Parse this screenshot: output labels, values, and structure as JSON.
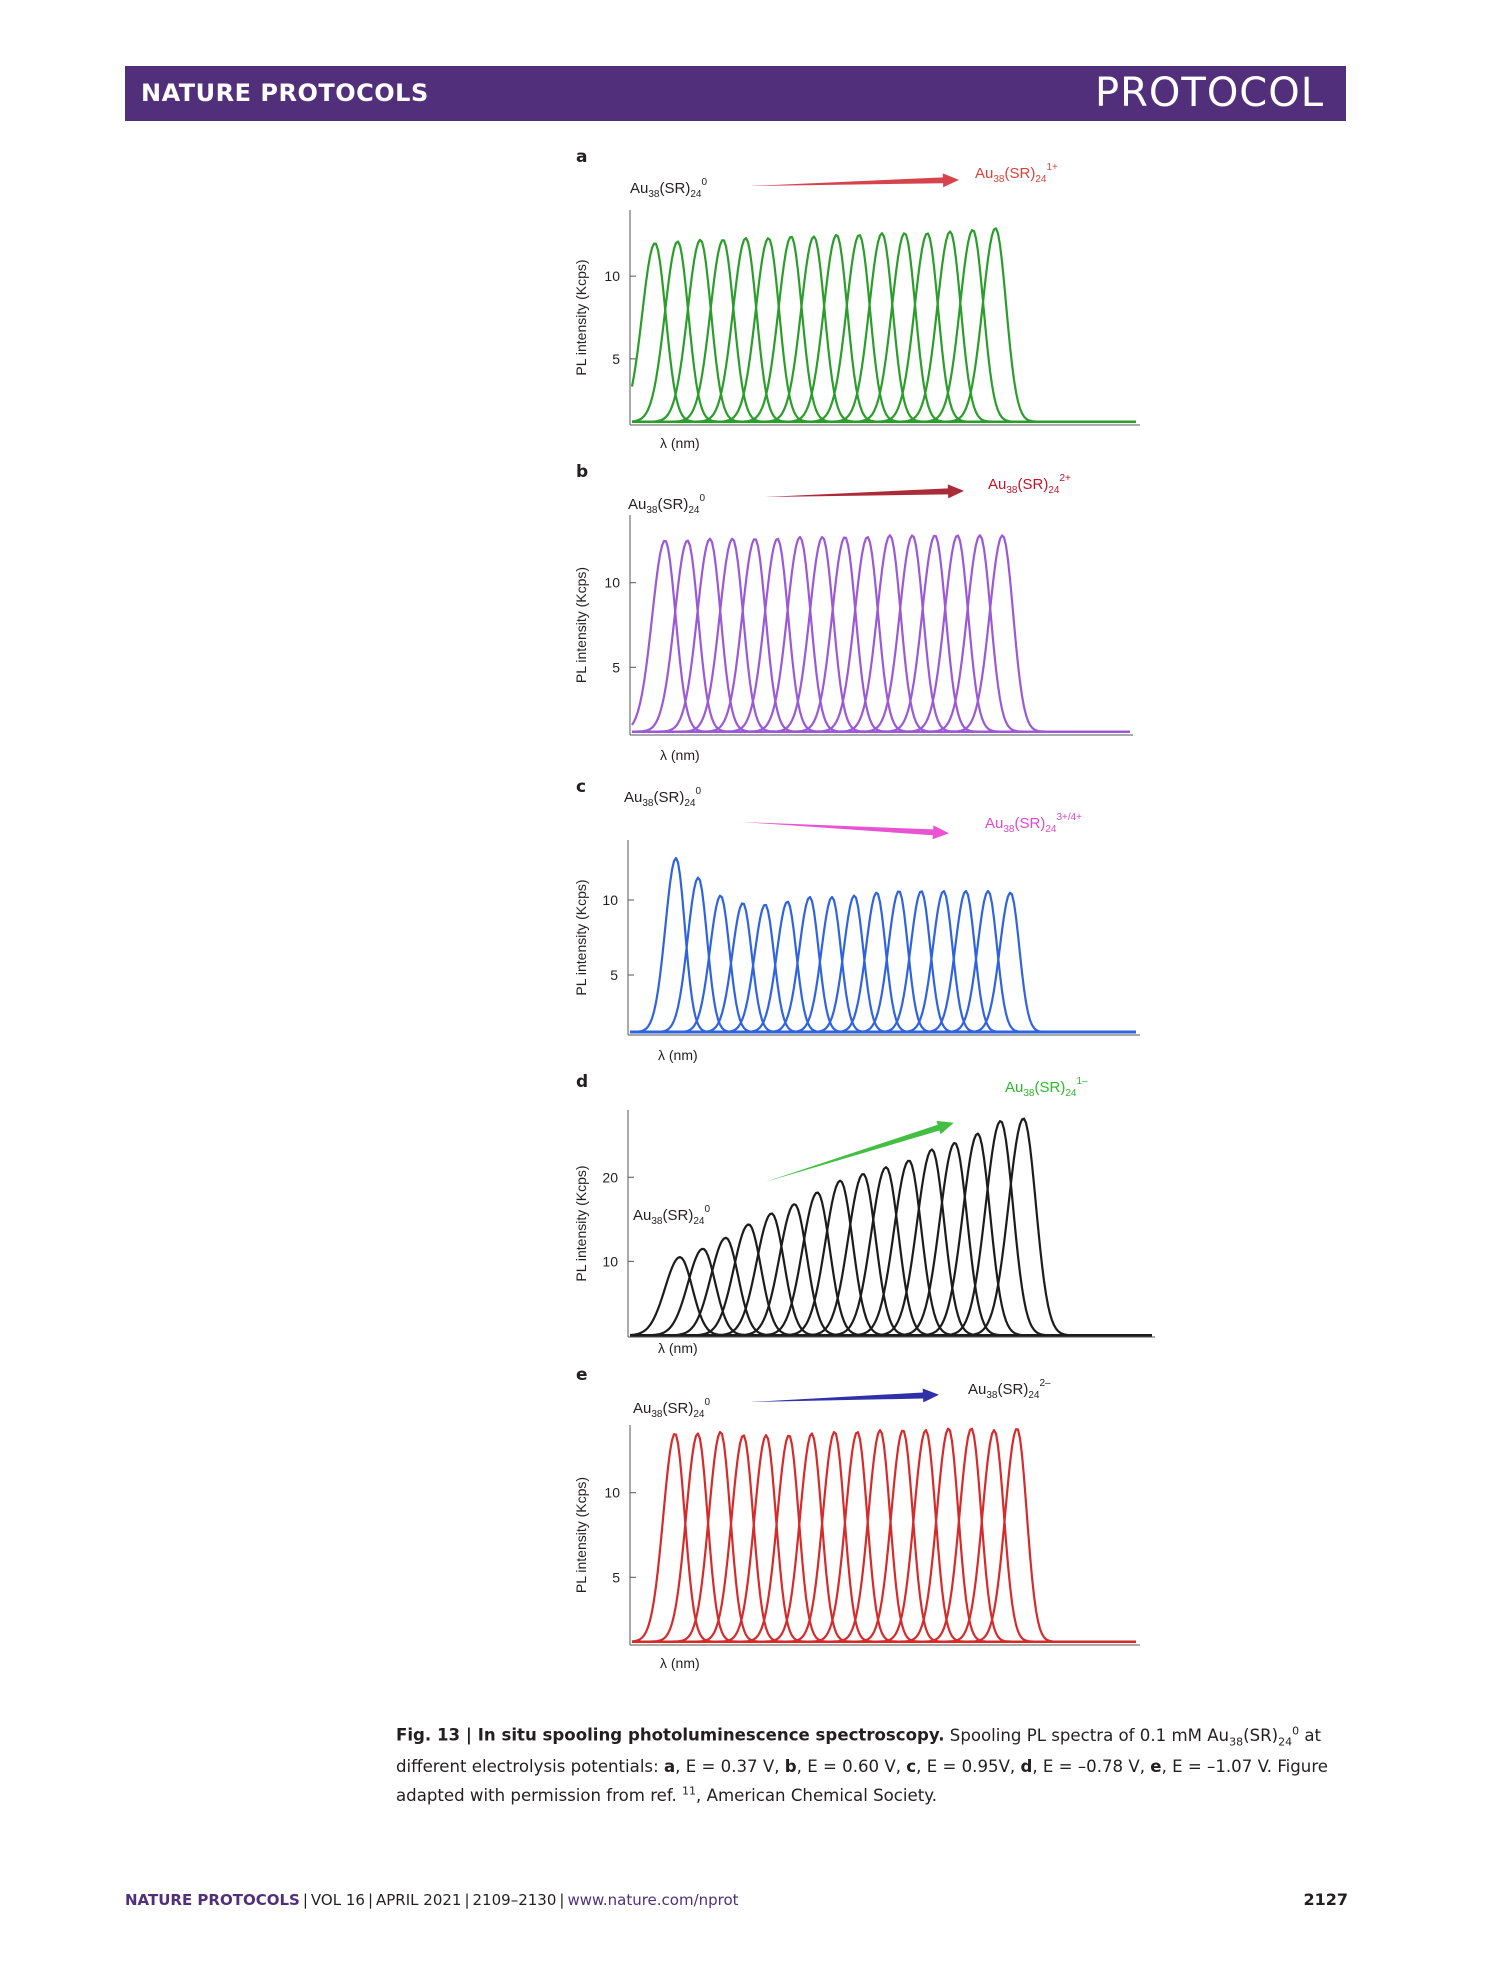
{
  "header": {
    "journal": "NATURE PROTOCOLS",
    "article_type": "PROTOCOL"
  },
  "panels": [
    {
      "letter": "a",
      "ylabel": "PL intensity (Kcps)",
      "xlabel": "λ (nm)",
      "yticks": [
        "10",
        "5"
      ],
      "start_label": "Au38(SR)24 0",
      "end_label": "Au38(SR)24 1+",
      "line_color": "#2a9d2a",
      "arrow_color": "#d32f3a",
      "end_label_color": "#d9433a"
    },
    {
      "letter": "b",
      "ylabel": "PL intensity (Kcps)",
      "xlabel": "λ (nm)",
      "yticks": [
        "10",
        "5"
      ],
      "start_label": "Au38(SR)24 0",
      "end_label": "Au38(SR)24 2+",
      "line_color": "#9b59d6",
      "arrow_color": "#a31424",
      "end_label_color": "#c0142a"
    },
    {
      "letter": "c",
      "ylabel": "PL intensity (Kcps)",
      "xlabel": "λ (nm)",
      "yticks": [
        "10",
        "5"
      ],
      "start_label": "Au38(SR)24 0",
      "end_label": "Au38(SR)24 3+/4+",
      "line_color": "#2f63e0",
      "arrow_color": "#e83fcf",
      "end_label_color": "#e04ac9"
    },
    {
      "letter": "d",
      "ylabel": "PL intensity (Kcps)",
      "xlabel": "λ (nm)",
      "yticks": [
        "20",
        "10"
      ],
      "start_label": "Au38(SR)24 0",
      "end_label": "Au38(SR)24 1–",
      "line_color": "#1c1c1c",
      "arrow_color": "#2db82d",
      "end_label_color": "#2db82d"
    },
    {
      "letter": "e",
      "ylabel": "PL intensity (Kcps)",
      "xlabel": "λ (nm)",
      "yticks": [
        "10",
        "5"
      ],
      "start_label": "Au38(SR)24 0",
      "end_label": "Au38(SR)24 2–",
      "line_color": "#d62b2b",
      "arrow_color": "#1a1aa0",
      "end_label_color": "#231f20"
    }
  ],
  "chart_data": [
    {
      "type": "line",
      "panel": "a",
      "xlabel": "λ (nm)",
      "ylabel": "PL intensity (Kcps)",
      "ylim": [
        1,
        14
      ],
      "series_peaks": [
        12,
        12.1,
        12.2,
        12.2,
        12.3,
        12.3,
        12.4,
        12.4,
        12.5,
        12.5,
        12.6,
        12.6,
        12.6,
        12.7,
        12.8,
        12.9
      ]
    },
    {
      "type": "line",
      "panel": "b",
      "xlabel": "λ (nm)",
      "ylabel": "PL intensity (Kcps)",
      "ylim": [
        1,
        14
      ],
      "series_peaks": [
        12.5,
        12.5,
        12.6,
        12.6,
        12.6,
        12.6,
        12.7,
        12.7,
        12.7,
        12.7,
        12.8,
        12.8,
        12.8,
        12.8,
        12.8,
        12.8
      ]
    },
    {
      "type": "line",
      "panel": "c",
      "xlabel": "λ (nm)",
      "ylabel": "PL intensity (Kcps)",
      "ylim": [
        1,
        14
      ],
      "series_peaks": [
        12.8,
        11.5,
        10.3,
        9.8,
        9.7,
        9.9,
        10.2,
        10.2,
        10.3,
        10.5,
        10.6,
        10.6,
        10.6,
        10.6,
        10.6,
        10.5
      ]
    },
    {
      "type": "line",
      "panel": "d",
      "xlabel": "λ (nm)",
      "ylabel": "PL intensity (Kcps)",
      "ylim": [
        1,
        28
      ],
      "series_peaks": [
        10.5,
        11.5,
        12.8,
        14.4,
        15.7,
        16.8,
        18.2,
        19.6,
        20.4,
        21.2,
        22.0,
        23.3,
        24.1,
        25.2,
        26.7,
        27.0
      ]
    },
    {
      "type": "line",
      "panel": "e",
      "xlabel": "λ (nm)",
      "ylabel": "PL intensity (Kcps)",
      "ylim": [
        1,
        14
      ],
      "series_peaks": [
        13.5,
        13.5,
        13.6,
        13.4,
        13.4,
        13.4,
        13.5,
        13.6,
        13.6,
        13.7,
        13.7,
        13.7,
        13.8,
        13.8,
        13.7,
        13.8
      ]
    }
  ],
  "caption": {
    "fig_label": "Fig. 13 | In situ spooling photoluminescence spectroscopy.",
    "text": "Spooling PL spectra of 0.1 mM Au38(SR)24 0 at different electrolysis potentials: a, E = 0.37 V, b, E = 0.60 V, c, E = 0.95V, d, E = –0.78 V, e, E = –1.07 V. Figure adapted with permission from ref. 11, American Chemical Society."
  },
  "footer": {
    "journal": "NATURE PROTOCOLS",
    "volume": "VOL 16",
    "date": "APRIL 2021",
    "pages": "2109–2130",
    "url": "www.nature.com/nprot",
    "page_number": "2127"
  }
}
